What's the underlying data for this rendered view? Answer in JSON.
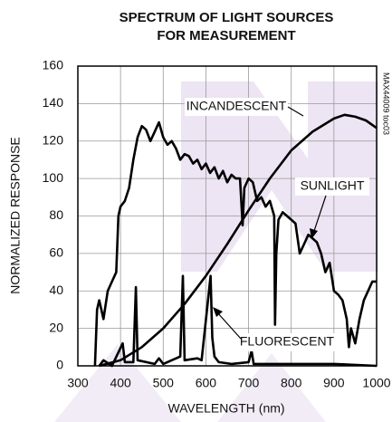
{
  "chart_data": {
    "type": "line",
    "title": [
      "SPECTRUM OF LIGHT SOURCES",
      "FOR MEASUREMENT"
    ],
    "x_label": "WAVELENGTH (nm)",
    "y_label": "NORMALIZED RESPONSE",
    "side_note": "MAX44009 toc03",
    "annotations": [
      "INCANDESCENT",
      "SUNLIGHT",
      "FLUORESCENT"
    ],
    "xlim": [
      300,
      1000
    ],
    "xticks": [
      300,
      400,
      500,
      600,
      700,
      800,
      900,
      1000
    ],
    "ylim": [
      0,
      160
    ],
    "yticks": [
      0,
      20,
      40,
      60,
      80,
      100,
      120,
      140,
      160
    ],
    "grid": true,
    "series": [
      {
        "name": "INCANDESCENT",
        "color": "#000000",
        "x": [
          350,
          400,
          450,
          500,
          550,
          600,
          650,
          700,
          750,
          800,
          850,
          900,
          925,
          950,
          975,
          1000
        ],
        "values": [
          0,
          3,
          10,
          20,
          33,
          48,
          65,
          83,
          100,
          115,
          125,
          132,
          134,
          133,
          131,
          127
        ]
      },
      {
        "name": "SUNLIGHT",
        "color": "#000000",
        "x": [
          340,
          345,
          350,
          360,
          370,
          380,
          390,
          395,
          400,
          410,
          420,
          430,
          440,
          450,
          460,
          470,
          480,
          490,
          500,
          510,
          520,
          530,
          540,
          550,
          560,
          570,
          580,
          590,
          600,
          610,
          620,
          630,
          640,
          650,
          660,
          670,
          680,
          686,
          690,
          700,
          710,
          720,
          730,
          740,
          750,
          760,
          762,
          765,
          770,
          780,
          790,
          800,
          810,
          820,
          830,
          840,
          850,
          860,
          870,
          880,
          890,
          900,
          910,
          920,
          930,
          935,
          940,
          950,
          960,
          970,
          980,
          990,
          1000
        ],
        "values": [
          0,
          30,
          35,
          25,
          40,
          45,
          50,
          80,
          85,
          88,
          95,
          110,
          122,
          128,
          126,
          120,
          125,
          130,
          122,
          118,
          120,
          116,
          110,
          113,
          112,
          108,
          110,
          105,
          108,
          103,
          106,
          100,
          104,
          98,
          102,
          100,
          100,
          75,
          95,
          100,
          98,
          88,
          90,
          85,
          88,
          80,
          22,
          60,
          78,
          82,
          80,
          78,
          76,
          60,
          65,
          70,
          68,
          66,
          60,
          50,
          55,
          40,
          38,
          35,
          25,
          10,
          20,
          12,
          25,
          35,
          40,
          45,
          45
        ]
      },
      {
        "name": "FLUORESCENT",
        "color": "#000000",
        "x": [
          350,
          360,
          380,
          405,
          410,
          430,
          436,
          440,
          480,
          490,
          500,
          540,
          546,
          550,
          580,
          590,
          611,
          615,
          620,
          630,
          660,
          700,
          707,
          712,
          760,
          800,
          900,
          1000
        ],
        "values": [
          0,
          3,
          0,
          12,
          2,
          2,
          42,
          3,
          1,
          4,
          1,
          5,
          48,
          3,
          4,
          3,
          48,
          15,
          5,
          2,
          1,
          2,
          8,
          1,
          1,
          1,
          1,
          0
        ]
      }
    ]
  }
}
